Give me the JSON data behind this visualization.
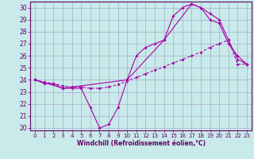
{
  "xlabel": "Windchill (Refroidissement éolien,°C)",
  "bg_color": "#c8eaea",
  "grid_color": "#aaaacc",
  "line_color": "#aa00aa",
  "xlim_min": -0.5,
  "xlim_max": 23.5,
  "ylim_min": 19.8,
  "ylim_max": 30.5,
  "yticks": [
    20,
    21,
    22,
    23,
    24,
    25,
    26,
    27,
    28,
    29,
    30
  ],
  "xticks": [
    0,
    1,
    2,
    3,
    4,
    5,
    6,
    7,
    8,
    9,
    10,
    11,
    12,
    13,
    14,
    15,
    16,
    17,
    18,
    19,
    20,
    21,
    22,
    23
  ],
  "line1_x": [
    0,
    1,
    2,
    3,
    4,
    5,
    6,
    7,
    8,
    9,
    10,
    11,
    12,
    13,
    14,
    15,
    16,
    17,
    18,
    19,
    20,
    21,
    22,
    23
  ],
  "line1_y": [
    24,
    23.7,
    23.7,
    23.3,
    23.3,
    23.3,
    21.7,
    20.0,
    20.3,
    21.7,
    24.0,
    26.0,
    26.7,
    27.0,
    27.3,
    29.3,
    30.0,
    30.3,
    30.0,
    29.0,
    28.7,
    27.0,
    26.0,
    25.3
  ],
  "line2_x": [
    0,
    1,
    2,
    3,
    4,
    5,
    6,
    7,
    8,
    9,
    10,
    11,
    12,
    13,
    14,
    15,
    16,
    17,
    18,
    19,
    20,
    21,
    22,
    23
  ],
  "line2_y": [
    24,
    23.8,
    23.7,
    23.5,
    23.4,
    23.4,
    23.3,
    23.3,
    23.4,
    23.6,
    23.9,
    24.2,
    24.5,
    24.8,
    25.1,
    25.4,
    25.7,
    26.0,
    26.3,
    26.7,
    27.0,
    27.3,
    25.3,
    25.3
  ],
  "line3_x": [
    0,
    3,
    10,
    14,
    17,
    18,
    19,
    20,
    21,
    22,
    23
  ],
  "line3_y": [
    24,
    23.3,
    24.0,
    27.3,
    30.3,
    30.0,
    29.5,
    29.0,
    27.3,
    25.7,
    25.3
  ]
}
